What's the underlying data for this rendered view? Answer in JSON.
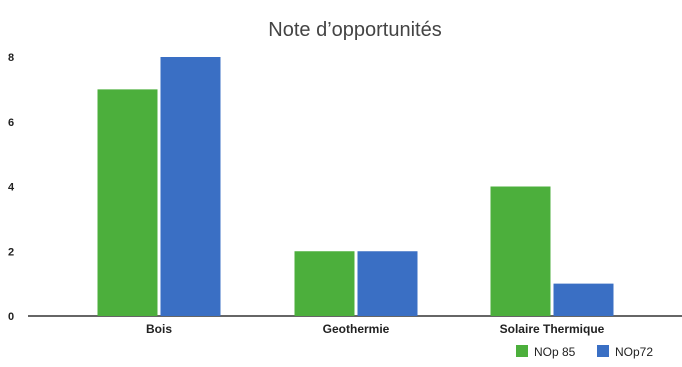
{
  "chart_data": {
    "type": "bar",
    "title": "Note d’opportunités",
    "xlabel": "",
    "ylabel": "",
    "categories": [
      "Bois",
      "Geothermie",
      "Solaire Thermique"
    ],
    "series": [
      {
        "name": "NOp 85",
        "values": [
          7,
          2,
          4
        ],
        "color": "#4caf3c"
      },
      {
        "name": "NOp72",
        "values": [
          8,
          2,
          1
        ],
        "color": "#3a6fc4"
      }
    ],
    "ylim": [
      0,
      8
    ],
    "yticks": [
      "0",
      "2",
      "4",
      "6",
      "8"
    ],
    "grid": false,
    "legend_position": "bottom-right"
  }
}
